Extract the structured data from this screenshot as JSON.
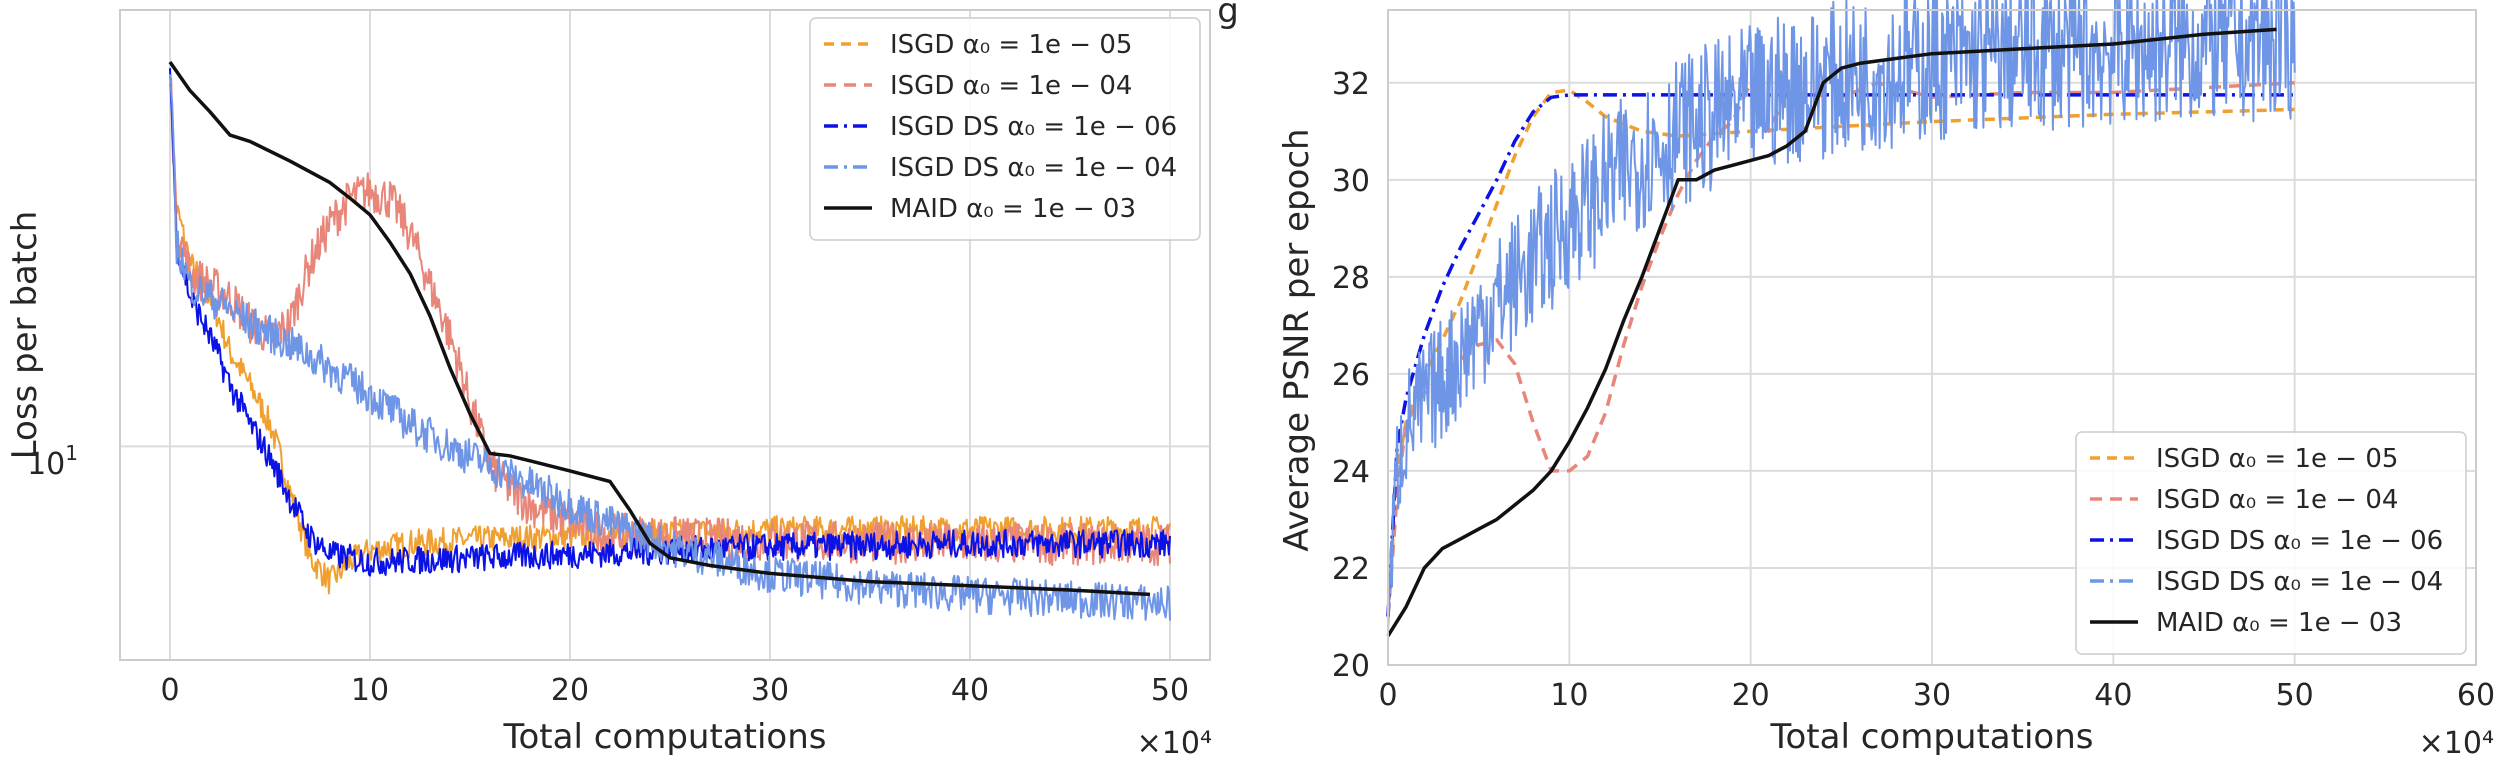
{
  "figure": {
    "title_fragment": "g",
    "colors": {
      "isgd_1e05": "#f0a030",
      "isgd_1e04": "#e8867a",
      "isgd_ds_1e06": "#0b12e6",
      "isgd_ds_1e04": "#6f95e6",
      "maid_1e03": "#111111",
      "grid": "#dcdcdc",
      "spine": "#cccccc"
    }
  },
  "chart_data": [
    {
      "type": "line",
      "xlabel": "Total computations",
      "ylabel": "Loss per batch",
      "x_multiplier": "×10⁴",
      "y_tick_base": "10",
      "y_tick_exp": "1",
      "yscale": "log",
      "xlim": [
        -2.5,
        52
      ],
      "ylim": [
        4.0,
        65
      ],
      "xticks": [
        "0",
        "10",
        "20",
        "30",
        "40",
        "50"
      ],
      "grid": true,
      "legend_position": "top-right",
      "noise": [
        0.06,
        0.09,
        0.06,
        0.08,
        0.0
      ],
      "series": [
        {
          "name": "ISGD α₀ = 1e − 05",
          "color": "#f0a030",
          "dash": "10,7",
          "x": [
            0,
            0.3,
            1,
            2,
            3,
            4,
            5,
            6,
            7,
            8,
            9,
            10,
            12,
            15,
            20,
            25,
            30,
            40,
            50
          ],
          "y": [
            50,
            28,
            22,
            19,
            15,
            13,
            11,
            8.2,
            6.2,
            5.6,
            6.1,
            6.4,
            6.6,
            6.7,
            6.8,
            6.9,
            7.0,
            7.0,
            7.0
          ]
        },
        {
          "name": "ISGD α₀ = 1e − 04",
          "color": "#e8867a",
          "dash": "12,8",
          "x": [
            0,
            0.3,
            1,
            2,
            3,
            4,
            5,
            6,
            7,
            8,
            9,
            10,
            11,
            12,
            13,
            14,
            15,
            16,
            17,
            18,
            20,
            22,
            25,
            30,
            40,
            50
          ],
          "y": [
            50,
            26,
            21,
            20,
            19,
            17,
            16,
            17,
            22,
            26,
            29,
            30,
            29,
            25,
            20,
            16,
            12,
            9.2,
            8.3,
            7.8,
            7.2,
            6.9,
            6.8,
            6.7,
            6.6,
            6.6
          ]
        },
        {
          "name": "ISGD DS α₀ = 1e − 06",
          "color": "#0b12e6",
          "dash": "14,6,3,6",
          "x": [
            0,
            0.3,
            1,
            2,
            3,
            4,
            5,
            6,
            7,
            8,
            10,
            15,
            20,
            25,
            30,
            40,
            50
          ],
          "y": [
            50,
            24,
            19,
            16,
            13,
            11,
            9.5,
            8.0,
            6.8,
            6.3,
            6.1,
            6.2,
            6.3,
            6.4,
            6.5,
            6.6,
            6.6
          ]
        },
        {
          "name": "ISGD DS α₀ = 1e − 04",
          "color": "#6f95e6",
          "dash": "14,6,3,6",
          "x": [
            0,
            0.3,
            1,
            2,
            4,
            6,
            8,
            10,
            12,
            14,
            16,
            18,
            20,
            22,
            25,
            30,
            35,
            40,
            45,
            50
          ],
          "y": [
            50,
            24,
            20,
            19,
            17,
            15.5,
            14,
            12.5,
            11,
            10,
            9.2,
            8.5,
            7.8,
            7.2,
            6.5,
            5.8,
            5.5,
            5.3,
            5.2,
            5.1
          ]
        },
        {
          "name": "MAID α₀ = 1e − 03",
          "color": "#111111",
          "dash": "",
          "x": [
            0,
            1,
            2,
            3,
            4,
            6,
            8,
            9,
            10,
            11,
            12,
            13,
            14,
            15,
            16,
            17,
            18,
            20,
            22,
            23,
            24,
            25,
            27,
            30,
            35,
            40,
            45,
            49
          ],
          "y": [
            52,
            46,
            42,
            38,
            37,
            34,
            31,
            29,
            27,
            24,
            21,
            17.5,
            14,
            11.5,
            9.7,
            9.6,
            9.4,
            9.0,
            8.6,
            7.6,
            6.6,
            6.2,
            6.0,
            5.8,
            5.6,
            5.5,
            5.4,
            5.3
          ]
        }
      ]
    },
    {
      "type": "line",
      "xlabel": "Total computations",
      "ylabel": "Average PSNR per epoch",
      "x_multiplier": "×10⁴",
      "xlim": [
        0,
        60
      ],
      "ylim": [
        20,
        33.5
      ],
      "xticks": [
        "0",
        "10",
        "20",
        "30",
        "40",
        "50",
        "60"
      ],
      "yticks": [
        "20",
        "22",
        "24",
        "26",
        "28",
        "30",
        "32"
      ],
      "grid": true,
      "legend_position": "bottom-right",
      "noise": [
        0.0,
        0.0,
        0.0,
        0.05,
        0.0
      ],
      "series": [
        {
          "name": "ISGD α₀ = 1e − 05",
          "color": "#f0a030",
          "dash": "10,7",
          "x": [
            0,
            0.5,
            1,
            2,
            3,
            4,
            5,
            6,
            7,
            8,
            9,
            10,
            11,
            12,
            14,
            16,
            20,
            25,
            30,
            40,
            50
          ],
          "y": [
            21,
            24,
            25,
            26,
            26.7,
            27.5,
            28.5,
            29.5,
            30.5,
            31.3,
            31.8,
            31.85,
            31.6,
            31.3,
            31.0,
            30.9,
            31.0,
            31.1,
            31.2,
            31.35,
            31.45
          ]
        },
        {
          "name": "ISGD α₀ = 1e − 04",
          "color": "#e8867a",
          "dash": "12,8",
          "x": [
            0,
            0.5,
            1,
            2,
            3,
            4,
            5,
            6,
            7,
            8,
            9,
            10,
            11,
            12,
            13,
            14,
            15,
            16,
            17,
            18,
            19,
            20,
            21,
            22,
            25,
            27,
            30,
            35,
            40,
            45,
            50
          ],
          "y": [
            21,
            23.5,
            25,
            25.6,
            26,
            26.3,
            26.6,
            26.7,
            26.2,
            25.0,
            24.0,
            24.0,
            24.3,
            25.2,
            26.6,
            27.8,
            28.8,
            29.7,
            30.4,
            30.9,
            31.2,
            32.0,
            31.0,
            31.8,
            31.7,
            32.0,
            31.7,
            31.8,
            31.8,
            31.9,
            32.0
          ]
        },
        {
          "name": "ISGD DS α₀ = 1e − 06",
          "color": "#0b12e6",
          "dash": "14,6,3,6",
          "x": [
            0,
            0.5,
            1,
            2,
            3,
            4,
            5,
            6,
            7,
            8,
            9,
            10,
            15,
            20,
            30,
            40,
            50
          ],
          "y": [
            21,
            24.5,
            25.5,
            26.8,
            27.8,
            28.6,
            29.3,
            30.0,
            30.8,
            31.4,
            31.7,
            31.75,
            31.75,
            31.75,
            31.75,
            31.75,
            31.75
          ]
        },
        {
          "name": "ISGD DS α₀ = 1e − 04",
          "color": "#6f95e6",
          "dash": "14,6,3,6",
          "x": [
            0,
            0.5,
            1,
            2,
            3,
            4,
            5,
            6,
            7,
            8,
            9,
            10,
            11,
            12,
            13,
            14,
            15,
            16,
            18,
            20,
            22,
            25,
            30,
            35,
            40,
            45,
            50
          ],
          "y": [
            21,
            24,
            24.9,
            25.4,
            25.9,
            26.4,
            27.0,
            27.5,
            27.9,
            28.3,
            28.7,
            29.2,
            29.5,
            29.9,
            30.2,
            30.5,
            30.7,
            31.0,
            31.3,
            31.6,
            31.9,
            32.1,
            32.4,
            32.6,
            32.7,
            32.8,
            32.85
          ]
        },
        {
          "name": "MAID α₀ = 1e − 03",
          "color": "#111111",
          "dash": "",
          "x": [
            0,
            1,
            2,
            3,
            4,
            5,
            6,
            7,
            8,
            9,
            10,
            11,
            12,
            13,
            14,
            15,
            16,
            17,
            18,
            19,
            20,
            21,
            22,
            23,
            24,
            25,
            26,
            28,
            30,
            35,
            40,
            45,
            49
          ],
          "y": [
            20.6,
            21.2,
            22.0,
            22.4,
            22.6,
            22.8,
            23.0,
            23.3,
            23.6,
            24.0,
            24.6,
            25.3,
            26.1,
            27.1,
            28.0,
            29.0,
            30.0,
            30.0,
            30.2,
            30.3,
            30.4,
            30.5,
            30.7,
            31.0,
            32.0,
            32.3,
            32.4,
            32.5,
            32.6,
            32.7,
            32.8,
            33.0,
            33.1
          ]
        }
      ]
    }
  ]
}
